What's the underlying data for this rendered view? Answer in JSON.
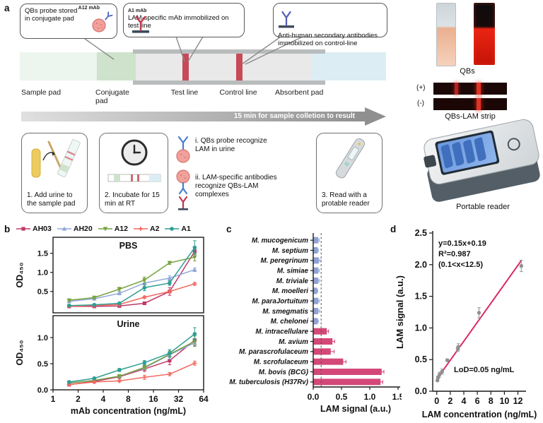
{
  "panel_a": {
    "label": "a",
    "callouts": [
      {
        "text": "QBs probe stored in conjugate pad",
        "tag": "A12 mAb"
      },
      {
        "text": "LAM-specific mAb immobilized on test line",
        "tag": "A1 mAb"
      },
      {
        "text": "Anti-human secondary antibodies immobilized on control-line"
      }
    ],
    "strip_labels": [
      "Sample pad",
      "Conjugate pad",
      "Test line",
      "Control line",
      "Absorbent pad"
    ],
    "arrow_text": "15 min for sample colletion to result",
    "steps": [
      "1. Add urine to the sample pad",
      "2. Incubate for 15 min at RT",
      "3. Read with a protable reader"
    ],
    "mechanism": [
      "i. QBs probe recognize LAM in urine",
      "ii. LAM-specific antibodies recognize QBs-LAM complexes"
    ],
    "right": {
      "qbs_label": "QBs",
      "pos_label": "(+)",
      "neg_label": "(-)",
      "strip_label": "QBs-LAM strip",
      "reader_label": "Portable reader"
    },
    "colors": {
      "test_line": "#c64a57",
      "conjugate_pad": "#cfe2cc",
      "sample_pad": "#edf5ef",
      "absorbent_pad": "#dcedf4",
      "membrane": "#e9e9e9"
    }
  },
  "chart_data": [
    {
      "panel": "b",
      "type": "line",
      "x": [
        1.56,
        3.125,
        6.25,
        12.5,
        25,
        50
      ],
      "x_ticks": [
        1,
        2,
        4,
        8,
        16,
        32,
        64
      ],
      "xlabel": "mAb concentration (ng/mL)",
      "ylabel": "OD₄₅₀",
      "legend": [
        "AH03",
        "AH20",
        "A12",
        "A2",
        "A1"
      ],
      "series_colors": [
        "#c13868",
        "#92a8d8",
        "#77a240",
        "#f2695f",
        "#2e9e93"
      ],
      "markers": [
        "square",
        "triangle-up",
        "triangle-down",
        "plus",
        "circle"
      ],
      "subplots": [
        {
          "title": "PBS",
          "ylim": [
            -0.06,
            1.92
          ],
          "yticks": [
            0.5,
            1.0,
            1.5
          ],
          "series": [
            {
              "name": "AH03",
              "values": [
                0.11,
                0.11,
                0.12,
                0.19,
                0.5,
                1.55
              ],
              "err": [
                0.02,
                0.02,
                0.02,
                0.03,
                0.1,
                0.06
              ]
            },
            {
              "name": "AH20",
              "values": [
                0.24,
                0.31,
                0.45,
                0.72,
                0.85,
                1.07
              ],
              "err": [
                0.02,
                0.02,
                0.03,
                0.05,
                0.06,
                0.05
              ]
            },
            {
              "name": "A12",
              "values": [
                0.27,
                0.34,
                0.56,
                0.8,
                1.25,
                1.4
              ],
              "err": [
                0.03,
                0.03,
                0.05,
                0.08,
                0.04,
                0.1
              ]
            },
            {
              "name": "A2",
              "values": [
                0.11,
                0.13,
                0.16,
                0.35,
                0.5,
                0.7
              ],
              "err": [
                0.02,
                0.02,
                0.02,
                0.03,
                0.04,
                0.04
              ]
            },
            {
              "name": "A1",
              "values": [
                0.13,
                0.15,
                0.19,
                0.6,
                0.72,
                1.65
              ],
              "err": [
                0.02,
                0.02,
                0.03,
                0.08,
                0.06,
                0.18
              ]
            }
          ]
        },
        {
          "title": "Urine",
          "ylim": [
            0,
            1.42
          ],
          "yticks": [
            0.0,
            0.5,
            1.0
          ],
          "series": [
            {
              "name": "AH03",
              "values": [
                0.1,
                0.16,
                0.25,
                0.4,
                0.56,
                0.95
              ],
              "err": [
                0.02,
                0.02,
                0.03,
                0.05,
                0.08,
                0.1
              ]
            },
            {
              "name": "AH20",
              "values": [
                0.13,
                0.18,
                0.26,
                0.42,
                0.67,
                0.9
              ],
              "err": [
                0.02,
                0.02,
                0.02,
                0.04,
                0.08,
                0.06
              ]
            },
            {
              "name": "A12",
              "values": [
                0.13,
                0.18,
                0.26,
                0.43,
                0.68,
                0.93
              ],
              "err": [
                0.02,
                0.02,
                0.03,
                0.04,
                0.06,
                0.1
              ]
            },
            {
              "name": "A2",
              "values": [
                0.1,
                0.15,
                0.17,
                0.24,
                0.3,
                0.51
              ],
              "err": [
                0.02,
                0.02,
                0.02,
                0.04,
                0.03,
                0.04
              ]
            },
            {
              "name": "A1",
              "values": [
                0.15,
                0.22,
                0.38,
                0.52,
                0.7,
                1.07
              ],
              "err": [
                0.02,
                0.02,
                0.03,
                0.04,
                0.07,
                0.12
              ]
            }
          ]
        }
      ]
    },
    {
      "panel": "c",
      "type": "bar",
      "categories": [
        "M. mucogenicum",
        "M. septium",
        "M. peregrinum",
        "M. simiae",
        "M. triviale",
        "M. moelleri",
        "M. paraJortuitum",
        "M. smegmatis",
        "M. chelonei",
        "M. intracellulare",
        "M. avium",
        "M. parascrofulaceum",
        "M. scrofulaceum",
        "M. bovis (BCG)",
        "M. tuberculosis (H37Rv)"
      ],
      "values": [
        0.09,
        0.08,
        0.1,
        0.09,
        0.09,
        0.07,
        0.09,
        0.09,
        0.08,
        0.24,
        0.34,
        0.31,
        0.53,
        1.21,
        1.19
      ],
      "errors": [
        0.015,
        0.01,
        0.02,
        0.015,
        0.015,
        0.01,
        0.015,
        0.02,
        0.01,
        0.03,
        0.04,
        0.06,
        0.05,
        0.04,
        0.04
      ],
      "colors": [
        "#8ea2d4",
        "#8ea2d4",
        "#8ea2d4",
        "#8ea2d4",
        "#8ea2d4",
        "#8ea2d4",
        "#8ea2d4",
        "#8ea2d4",
        "#8ea2d4",
        "#d34878",
        "#d34878",
        "#d34878",
        "#d34878",
        "#d34878",
        "#d34878"
      ],
      "cutoff": 0.14,
      "xticks": [
        0.0,
        0.5,
        1.0,
        1.5
      ],
      "xlim": [
        0,
        1.5
      ],
      "xlabel": "LAM signal (a.u.)"
    },
    {
      "panel": "d",
      "type": "scatter",
      "points": [
        [
          0.1,
          0.17
        ],
        [
          0.2,
          0.22
        ],
        [
          0.39,
          0.26
        ],
        [
          0.78,
          0.31
        ],
        [
          1.56,
          0.49
        ],
        [
          3.1,
          0.67
        ],
        [
          3.2,
          0.7
        ],
        [
          6.25,
          1.24
        ],
        [
          12.5,
          1.98
        ]
      ],
      "errors": [
        0.01,
        0.02,
        0.04,
        0.04,
        0.02,
        0.04,
        0.05,
        0.08,
        0.09
      ],
      "fit": {
        "slope": 0.15,
        "intercept": 0.19,
        "x_range": [
          0,
          12.5
        ]
      },
      "annotation_lines": [
        "y=0.15x+0.19",
        "R²=0.987",
        "(0.1<x<12.5)"
      ],
      "lod_text": "LoD=0.05 ng/mL",
      "xticks": [
        0,
        2,
        4,
        6,
        8,
        10,
        12
      ],
      "yticks": [
        0.0,
        0.5,
        1.0,
        1.5,
        2.0,
        2.5
      ],
      "xlim": [
        -0.6,
        13.2
      ],
      "ylim": [
        0,
        2.5
      ],
      "xlabel": "LAM concentration (ng/mL)",
      "ylabel": "LAM signal (a.u.)",
      "point_color": "#8f8f8f",
      "line_color": "#d92b5f"
    }
  ]
}
